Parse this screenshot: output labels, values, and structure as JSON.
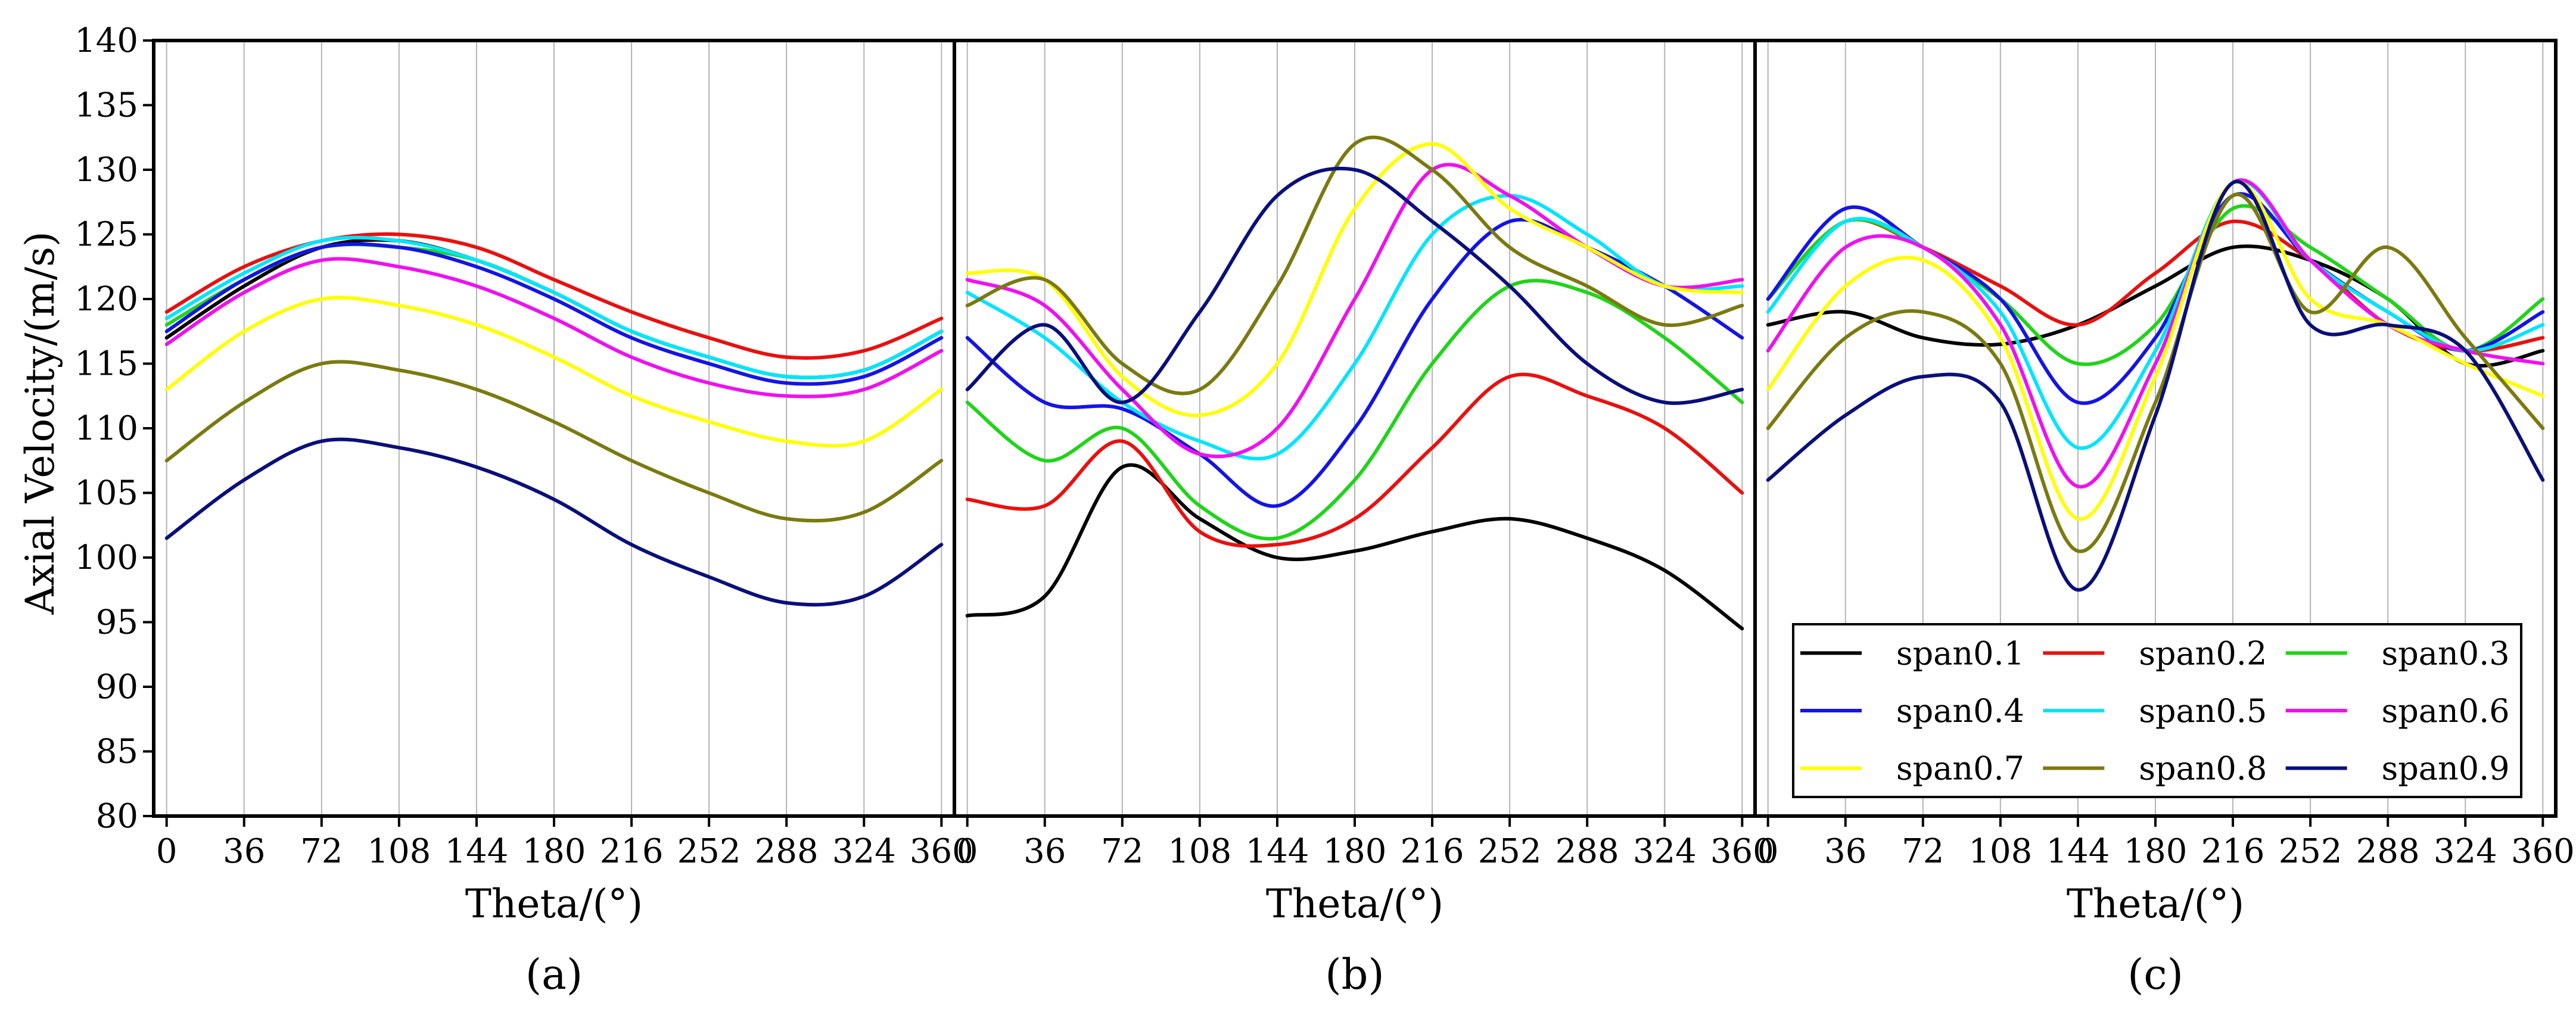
{
  "figure": {
    "ylabel": "Axial Velocity/(m/s)",
    "xlabel": "Theta/(°)",
    "panel_labels": [
      "(a)",
      "(b)",
      "(c)"
    ]
  },
  "legend": {
    "position": "bottom-right of panel (c)",
    "entries": [
      "span0.1",
      "span0.2",
      "span0.3",
      "span0.4",
      "span0.5",
      "span0.6",
      "span0.7",
      "span0.8",
      "span0.9"
    ]
  },
  "colors": {
    "span0.1": "#000000",
    "span0.2": "#e8110f",
    "span0.3": "#20d41a",
    "span0.4": "#1414e6",
    "span0.5": "#00e5ff",
    "span0.6": "#ee11ee",
    "span0.7": "#ffff00",
    "span0.8": "#7a7a10",
    "span0.9": "#0a0f7a"
  },
  "chart_data": [
    {
      "type": "line",
      "panel": "(a)",
      "xlabel": "Theta/(°)",
      "ylabel": "Axial Velocity/(m/s)",
      "xlim": [
        -6,
        366
      ],
      "ylim": [
        80,
        140
      ],
      "xticks": [
        0,
        36,
        72,
        108,
        144,
        180,
        216,
        252,
        288,
        324,
        360
      ],
      "yticks": [
        80,
        85,
        90,
        95,
        100,
        105,
        110,
        115,
        120,
        125,
        130,
        135,
        140
      ],
      "grid": "vertical",
      "x": [
        0,
        36,
        72,
        108,
        144,
        180,
        216,
        252,
        288,
        324,
        360
      ],
      "series": [
        {
          "name": "span0.1",
          "values": [
            117,
            121,
            124,
            124.5,
            123,
            120.5,
            117.5,
            115.5,
            114,
            114.5,
            117.5
          ]
        },
        {
          "name": "span0.2",
          "values": [
            119,
            122.5,
            124.5,
            125,
            124,
            121.5,
            119,
            117,
            115.5,
            116,
            118.5
          ]
        },
        {
          "name": "span0.3",
          "values": [
            118,
            121.5,
            124,
            124,
            123,
            120.5,
            117.5,
            115.5,
            114,
            114.5,
            117.5
          ]
        },
        {
          "name": "span0.4",
          "values": [
            117.5,
            121.5,
            124,
            124,
            122.5,
            120,
            117,
            115,
            113.5,
            114,
            117
          ]
        },
        {
          "name": "span0.5",
          "values": [
            118.5,
            122,
            124.5,
            124.5,
            123,
            120.5,
            117.5,
            115.5,
            114,
            114.5,
            117.5
          ]
        },
        {
          "name": "span0.6",
          "values": [
            116.5,
            120.5,
            123,
            122.5,
            121,
            118.5,
            115.5,
            113.5,
            112.5,
            113,
            116
          ]
        },
        {
          "name": "span0.7",
          "values": [
            113,
            117.5,
            120,
            119.5,
            118,
            115.5,
            112.5,
            110.5,
            109,
            109,
            113
          ]
        },
        {
          "name": "span0.8",
          "values": [
            107.5,
            112,
            115,
            114.5,
            113,
            110.5,
            107.5,
            105,
            103,
            103.5,
            107.5
          ]
        },
        {
          "name": "span0.9",
          "values": [
            101.5,
            106,
            109,
            108.5,
            107,
            104.5,
            101,
            98.5,
            96.5,
            97,
            101
          ]
        }
      ]
    },
    {
      "type": "line",
      "panel": "(b)",
      "xlabel": "Theta/(°)",
      "xlim": [
        -6,
        366
      ],
      "ylim": [
        80,
        140
      ],
      "xticks": [
        0,
        36,
        72,
        108,
        144,
        180,
        216,
        252,
        288,
        324,
        360
      ],
      "grid": "vertical",
      "x": [
        0,
        36,
        72,
        108,
        144,
        180,
        216,
        252,
        288,
        324,
        360
      ],
      "series": [
        {
          "name": "span0.1",
          "values": [
            95.5,
            97,
            107,
            103,
            100,
            100.5,
            102,
            103,
            101.5,
            99,
            94.5
          ]
        },
        {
          "name": "span0.2",
          "values": [
            104.5,
            104,
            109,
            102,
            101,
            103,
            108.5,
            114,
            112.5,
            110,
            105
          ]
        },
        {
          "name": "span0.3",
          "values": [
            112,
            107.5,
            110,
            104,
            101.5,
            106,
            115,
            121,
            120.5,
            117,
            112
          ]
        },
        {
          "name": "span0.4",
          "values": [
            117,
            112,
            111.5,
            108,
            104,
            110,
            120,
            126,
            124,
            121,
            117
          ]
        },
        {
          "name": "span0.5",
          "values": [
            120.5,
            117,
            112,
            109,
            108,
            115,
            125,
            128,
            125,
            121,
            121
          ]
        },
        {
          "name": "span0.6",
          "values": [
            121.5,
            119.5,
            113,
            108,
            110,
            120,
            130,
            128,
            124,
            121,
            121.5
          ]
        },
        {
          "name": "span0.7",
          "values": [
            122,
            121.5,
            114,
            111,
            115,
            127,
            132,
            127,
            124,
            121,
            120.5
          ]
        },
        {
          "name": "span0.8",
          "values": [
            119.5,
            121.5,
            115,
            113,
            121,
            132,
            130,
            124,
            121,
            118,
            119.5
          ]
        },
        {
          "name": "span0.9",
          "values": [
            113,
            118,
            112,
            119,
            128,
            130,
            126,
            121,
            115,
            112,
            113
          ]
        }
      ]
    },
    {
      "type": "line",
      "panel": "(c)",
      "xlabel": "Theta/(°)",
      "xlim": [
        -6,
        366
      ],
      "ylim": [
        80,
        140
      ],
      "xticks": [
        0,
        36,
        72,
        108,
        144,
        180,
        216,
        252,
        288,
        324,
        360
      ],
      "grid": "vertical",
      "x": [
        0,
        36,
        72,
        108,
        144,
        180,
        216,
        252,
        288,
        324,
        360
      ],
      "series": [
        {
          "name": "span0.1",
          "values": [
            118,
            119,
            117,
            116.5,
            118,
            121,
            124,
            123,
            120,
            115,
            116
          ]
        },
        {
          "name": "span0.2",
          "values": [
            120,
            126,
            124,
            121,
            118,
            122,
            126,
            123,
            118,
            116,
            117
          ]
        },
        {
          "name": "span0.3",
          "values": [
            120,
            126,
            124,
            120,
            115,
            118,
            127,
            124,
            120,
            116,
            120
          ]
        },
        {
          "name": "span0.4",
          "values": [
            120,
            127,
            124,
            120,
            112,
            117,
            128,
            123,
            119,
            116,
            119
          ]
        },
        {
          "name": "span0.5",
          "values": [
            119,
            126,
            124,
            119,
            108.5,
            116,
            129,
            123,
            119,
            116,
            118
          ]
        },
        {
          "name": "span0.6",
          "values": [
            116,
            124,
            124,
            118,
            105.5,
            115,
            129,
            123,
            118,
            116,
            115
          ]
        },
        {
          "name": "span0.7",
          "values": [
            113,
            121,
            123,
            117,
            103,
            114,
            129,
            120,
            118,
            115,
            112.5
          ]
        },
        {
          "name": "span0.8",
          "values": [
            110,
            117,
            119,
            115,
            100.5,
            112,
            128,
            119,
            124,
            117,
            110
          ]
        },
        {
          "name": "span0.9",
          "values": [
            106,
            111,
            114,
            112,
            97.5,
            111,
            129,
            118,
            118,
            116,
            106
          ]
        }
      ]
    }
  ]
}
